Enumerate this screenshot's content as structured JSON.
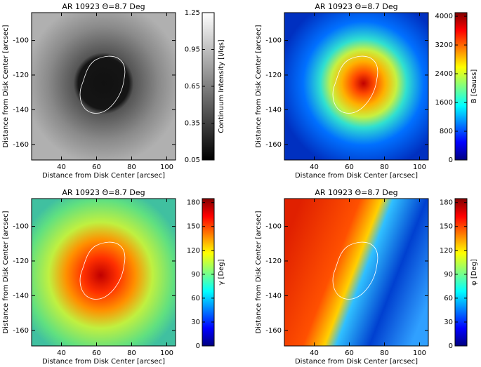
{
  "chart_data": [
    {
      "type": "image",
      "title": "AR 10923 Θ=8.7 Deg",
      "xlabel": "Distance from Disk Center [arcsec]",
      "ylabel": "Distance from Disk Center [arcsec]",
      "xlim": [
        23,
        105
      ],
      "xticks": [
        40,
        60,
        80,
        100
      ],
      "ylim": [
        -169,
        -84
      ],
      "yticks": [
        -100,
        -120,
        -140,
        -160
      ],
      "colorbar": {
        "label": "Continuum Intensity [I/Iqs]",
        "lim": [
          0.05,
          1.25
        ],
        "ticks": [
          0.05,
          0.35,
          0.65,
          0.95,
          1.25
        ],
        "colormap": "gray"
      }
    },
    {
      "type": "image",
      "title": "AR 10923 Θ=8.7 Deg",
      "xlabel": "Distance from Disk Center [arcsec]",
      "ylabel": "Distance from Disk Center [arcsec]",
      "xlim": [
        23,
        105
      ],
      "xticks": [
        40,
        60,
        80,
        100
      ],
      "ylim": [
        -169,
        -84
      ],
      "yticks": [
        -100,
        -120,
        -140,
        -160
      ],
      "colorbar": {
        "label": "B [Gauss]",
        "lim": [
          0,
          4100
        ],
        "ticks": [
          0,
          800,
          1600,
          2400,
          3200,
          4000
        ],
        "colormap": "jet"
      }
    },
    {
      "type": "image",
      "title": "AR 10923 Θ=8.7 Deg",
      "xlabel": "Distance from Disk Center [arcsec]",
      "ylabel": "Distance from Disk Center [arcsec]",
      "xlim": [
        23,
        105
      ],
      "xticks": [
        40,
        60,
        80,
        100
      ],
      "ylim": [
        -169,
        -84
      ],
      "yticks": [
        -100,
        -120,
        -140,
        -160
      ],
      "colorbar": {
        "label": "γ [Deg]",
        "lim": [
          0,
          185
        ],
        "ticks": [
          0,
          30,
          60,
          90,
          120,
          150,
          180
        ],
        "colormap": "jet"
      }
    },
    {
      "type": "image",
      "title": "AR 10923 Θ=8.7 Deg",
      "xlabel": "Distance from Disk Center [arcsec]",
      "ylabel": "Distance from Disk Center [arcsec]",
      "xlim": [
        23,
        105
      ],
      "xticks": [
        40,
        60,
        80,
        100
      ],
      "ylim": [
        -169,
        -84
      ],
      "yticks": [
        -100,
        -120,
        -140,
        -160
      ],
      "colorbar": {
        "label": "φ [Deg]",
        "lim": [
          0,
          185
        ],
        "ticks": [
          0,
          30,
          60,
          90,
          120,
          150,
          180
        ],
        "colormap": "jet"
      }
    }
  ]
}
